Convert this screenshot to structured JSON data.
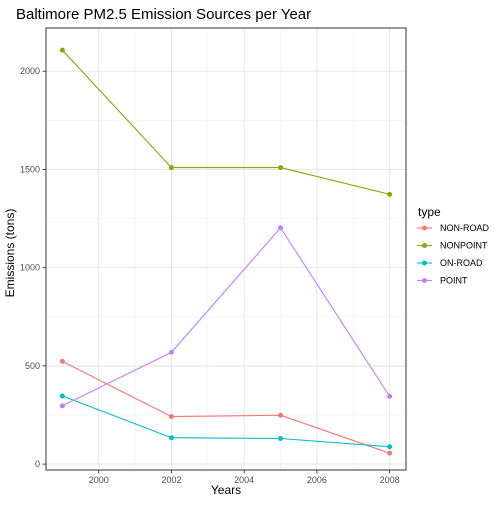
{
  "chart_data": {
    "type": "line",
    "title": "Baltimore PM2.5 Emission Sources per Year",
    "xlabel": "Years",
    "ylabel": "Emissions (tons)",
    "x": [
      1999,
      2002,
      2005,
      2008
    ],
    "xlim": [
      1998.55,
      2008.45
    ],
    "ylim": [
      -30,
      2220
    ],
    "x_ticks": [
      2000,
      2002,
      2004,
      2006,
      2008
    ],
    "x_tick_labels": [
      "2000",
      "2002",
      "2004",
      "2006",
      "2008"
    ],
    "y_ticks": [
      0,
      500,
      1000,
      1500,
      2000
    ],
    "y_tick_labels": [
      "0",
      "500",
      "1000",
      "1500",
      "2000"
    ],
    "grid": true,
    "legend_title": "type",
    "legend_position": "right",
    "series": [
      {
        "name": "NON-ROAD",
        "color": "#F8766D",
        "values": [
          522.9,
          242.0,
          248.9,
          55.8
        ]
      },
      {
        "name": "NONPOINT",
        "color": "#7CAE00",
        "values": [
          2107.6,
          1509.5,
          1509.5,
          1373.2
        ]
      },
      {
        "name": "ON-ROAD",
        "color": "#00BFC4",
        "values": [
          346.8,
          134.3,
          130.4,
          88.3
        ]
      },
      {
        "name": "POINT",
        "color": "#C77CFF",
        "values": [
          296.8,
          569.3,
          1202.5,
          344.98
        ]
      }
    ]
  }
}
